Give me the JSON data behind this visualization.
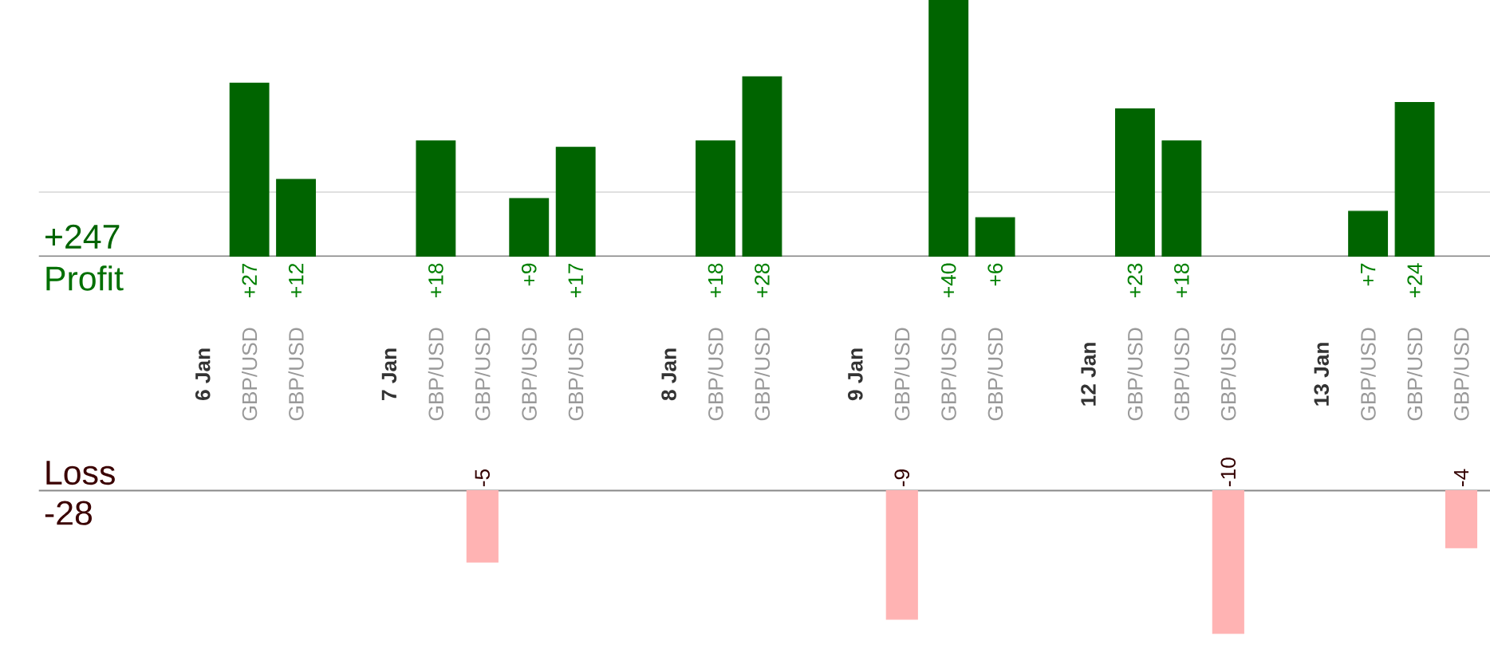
{
  "chart_data": [
    {
      "type": "bar",
      "ylabel": "Profit",
      "annotations": [
        "+247"
      ],
      "categories": [
        "**6 Jan**",
        "GBP/USD",
        "GBP/USD",
        null,
        "**7 Jan**",
        "GBP/USD",
        "GBP/USD",
        "GBP/USD",
        "GBP/USD",
        null,
        "**8 Jan**",
        "GBP/USD",
        "GBP/USD",
        null,
        "**9 Jan**",
        "GBP/USD",
        "GBP/USD",
        "GBP/USD",
        null,
        "**12 Jan**",
        "GBP/USD",
        "GBP/USD",
        "GBP/USD",
        null,
        "**13 Jan**",
        "GBP/USD",
        "GBP/USD",
        "GBP/USD"
      ],
      "series": [
        {
          "color": "#006400",
          "values": [
            null,
            27,
            12,
            null,
            null,
            18,
            null,
            9,
            17,
            null,
            null,
            18,
            28,
            null,
            null,
            null,
            40,
            6,
            null,
            null,
            23,
            18,
            null,
            null,
            null,
            7,
            24,
            null
          ],
          "value_labels": [
            null,
            "+27",
            "+12",
            null,
            null,
            "+18",
            null,
            "+9",
            "+17",
            null,
            null,
            "+18",
            "+28",
            null,
            null,
            null,
            "+40",
            "+6",
            null,
            null,
            "+23",
            "+18",
            null,
            null,
            null,
            "+7",
            "+24",
            null
          ]
        }
      ],
      "ylim": [
        0,
        40
      ],
      "ref_lines": [
        {
          "axis": "y",
          "value": 10,
          "color": "#e0e0e0"
        }
      ],
      "tick_labels": "x"
    },
    {
      "type": "bar",
      "ylabel": "Loss",
      "annotations": [
        "-28"
      ],
      "categories": [
        null,
        null,
        null,
        null,
        null,
        null,
        null,
        null,
        null,
        null,
        null,
        null,
        null,
        null,
        null,
        null,
        null,
        null,
        null,
        null,
        null,
        null,
        null,
        null,
        null,
        null,
        null,
        null
      ],
      "series": [
        {
          "color": "#ffb3b3",
          "values": [
            null,
            null,
            null,
            null,
            null,
            null,
            -5,
            null,
            null,
            null,
            null,
            null,
            null,
            null,
            null,
            -9,
            null,
            null,
            null,
            null,
            null,
            null,
            -10,
            null,
            null,
            null,
            null,
            -4
          ]
        }
      ],
      "ylim": [
        -10,
        0
      ],
      "data_labels": true
    }
  ]
}
